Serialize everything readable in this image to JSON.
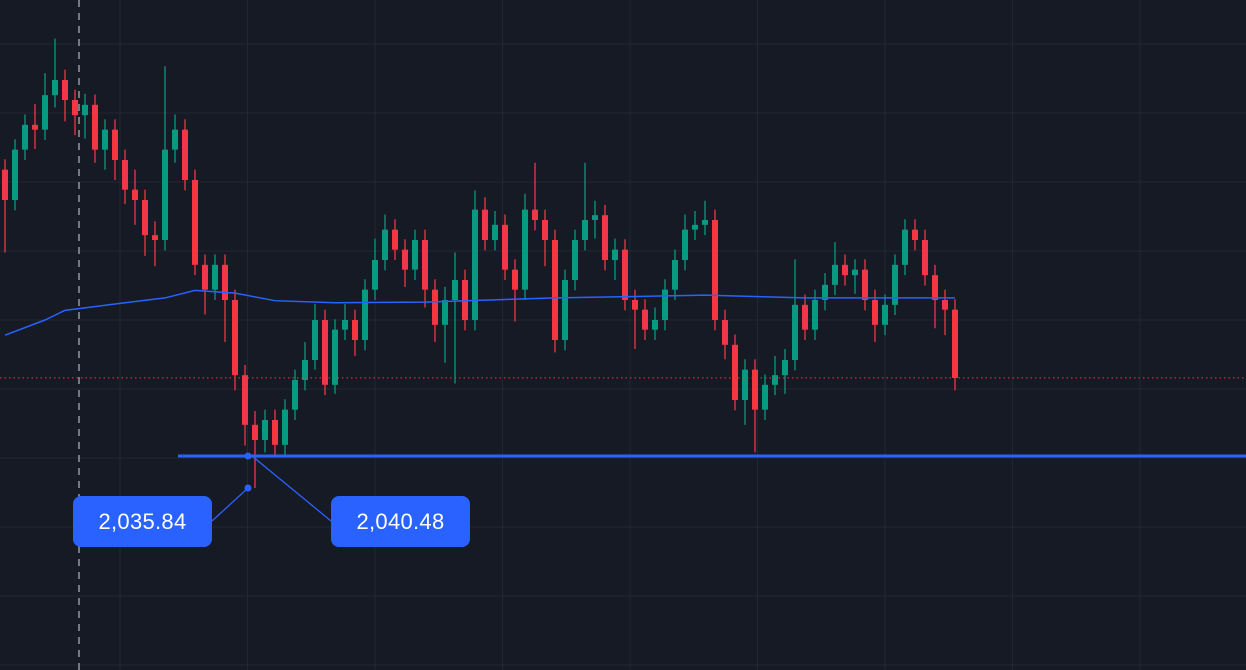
{
  "chart_data": {
    "type": "candlestick",
    "grid": true,
    "colors": {
      "background": "#161a25",
      "grid": "#232734",
      "up": "#089981",
      "down": "#f23645",
      "moving_average": "#2962ff",
      "horizontal_line": "#2962ff",
      "last_price_line": "#f23645",
      "crosshair": "#9598a1",
      "label_bg": "#2962ff"
    },
    "candles": [
      [
        2082.0,
        2083.5,
        2070.0,
        2077.6
      ],
      [
        2077.6,
        2086.4,
        2076.1,
        2084.9
      ],
      [
        2084.9,
        2090.0,
        2083.4,
        2088.5
      ],
      [
        2088.5,
        2091.5,
        2085.0,
        2087.8
      ],
      [
        2087.8,
        2096.0,
        2086.3,
        2092.8
      ],
      [
        2092.8,
        2101.0,
        2091.0,
        2095.0
      ],
      [
        2095.0,
        2096.5,
        2089.0,
        2092.1
      ],
      [
        2092.1,
        2093.6,
        2087.0,
        2089.9
      ],
      [
        2089.9,
        2093.0,
        2086.5,
        2091.4
      ],
      [
        2091.4,
        2092.9,
        2083.0,
        2084.9
      ],
      [
        2084.9,
        2089.3,
        2082.0,
        2087.8
      ],
      [
        2087.8,
        2089.3,
        2080.5,
        2083.4
      ],
      [
        2083.4,
        2084.9,
        2077.0,
        2079.1
      ],
      [
        2079.1,
        2082.0,
        2074.0,
        2077.6
      ],
      [
        2077.6,
        2079.1,
        2069.5,
        2072.5
      ],
      [
        2072.5,
        2074.5,
        2068.0,
        2071.8
      ],
      [
        2071.8,
        2097.0,
        2070.3,
        2084.9
      ],
      [
        2084.9,
        2090.0,
        2083.0,
        2087.8
      ],
      [
        2087.8,
        2089.3,
        2079.0,
        2080.5
      ],
      [
        2080.5,
        2082.0,
        2066.7,
        2068.2
      ],
      [
        2068.2,
        2069.7,
        2061.0,
        2064.6
      ],
      [
        2064.6,
        2069.7,
        2063.1,
        2068.2
      ],
      [
        2068.2,
        2069.7,
        2057.0,
        2063.1
      ],
      [
        2063.1,
        2064.6,
        2050.0,
        2052.2
      ],
      [
        2052.2,
        2053.7,
        2042.0,
        2045.0
      ],
      [
        2045.0,
        2047.0,
        2035.84,
        2042.8
      ],
      [
        2042.8,
        2047.2,
        2041.0,
        2045.7
      ],
      [
        2045.7,
        2047.2,
        2040.5,
        2042.1
      ],
      [
        2042.1,
        2048.7,
        2040.6,
        2047.2
      ],
      [
        2047.2,
        2053.0,
        2045.7,
        2051.5
      ],
      [
        2051.5,
        2057.0,
        2050.0,
        2054.4
      ],
      [
        2054.4,
        2062.5,
        2053.0,
        2060.2
      ],
      [
        2060.2,
        2061.7,
        2049.3,
        2050.8
      ],
      [
        2050.8,
        2060.3,
        2049.5,
        2058.8
      ],
      [
        2058.8,
        2062.5,
        2057.3,
        2060.2
      ],
      [
        2060.2,
        2061.7,
        2055.0,
        2057.3
      ],
      [
        2057.3,
        2066.1,
        2055.8,
        2064.6
      ],
      [
        2064.6,
        2072.0,
        2063.1,
        2068.9
      ],
      [
        2068.9,
        2075.5,
        2067.4,
        2073.3
      ],
      [
        2073.3,
        2074.8,
        2068.9,
        2070.4
      ],
      [
        2070.4,
        2071.9,
        2065.0,
        2067.5
      ],
      [
        2067.5,
        2073.3,
        2066.0,
        2071.8
      ],
      [
        2071.8,
        2073.3,
        2062.0,
        2064.6
      ],
      [
        2064.6,
        2066.1,
        2057.0,
        2059.5
      ],
      [
        2059.5,
        2065.0,
        2054.0,
        2063.1
      ],
      [
        2063.1,
        2070.0,
        2051.0,
        2066.0
      ],
      [
        2066.0,
        2067.5,
        2058.7,
        2060.2
      ],
      [
        2060.2,
        2079.0,
        2058.7,
        2076.2
      ],
      [
        2076.2,
        2078.0,
        2070.3,
        2071.8
      ],
      [
        2071.8,
        2076.0,
        2070.3,
        2074.0
      ],
      [
        2074.0,
        2075.5,
        2066.0,
        2067.5
      ],
      [
        2067.5,
        2069.0,
        2060.0,
        2064.6
      ],
      [
        2064.6,
        2078.5,
        2063.1,
        2076.2
      ],
      [
        2076.2,
        2083.0,
        2073.2,
        2074.7
      ],
      [
        2074.7,
        2076.2,
        2068.0,
        2071.8
      ],
      [
        2071.8,
        2073.3,
        2055.5,
        2057.3
      ],
      [
        2057.3,
        2067.5,
        2055.8,
        2066.0
      ],
      [
        2066.0,
        2073.3,
        2064.5,
        2071.8
      ],
      [
        2071.8,
        2083.0,
        2070.3,
        2074.7
      ],
      [
        2074.7,
        2077.5,
        2072.0,
        2075.4
      ],
      [
        2075.4,
        2076.9,
        2067.4,
        2068.9
      ],
      [
        2068.9,
        2072.0,
        2066.0,
        2070.4
      ],
      [
        2070.4,
        2071.9,
        2061.6,
        2063.1
      ],
      [
        2063.1,
        2064.6,
        2056.0,
        2061.7
      ],
      [
        2061.7,
        2063.2,
        2057.3,
        2058.8
      ],
      [
        2058.8,
        2062.0,
        2057.3,
        2060.2
      ],
      [
        2060.2,
        2066.1,
        2058.7,
        2064.6
      ],
      [
        2064.6,
        2070.4,
        2063.1,
        2068.9
      ],
      [
        2068.9,
        2075.5,
        2067.4,
        2073.3
      ],
      [
        2073.3,
        2076.0,
        2071.8,
        2074.0
      ],
      [
        2074.0,
        2077.5,
        2072.5,
        2074.7
      ],
      [
        2074.7,
        2076.2,
        2058.7,
        2060.2
      ],
      [
        2060.2,
        2061.7,
        2054.5,
        2056.6
      ],
      [
        2056.6,
        2058.1,
        2047.1,
        2048.6
      ],
      [
        2048.6,
        2054.5,
        2045.0,
        2053.0
      ],
      [
        2053.0,
        2054.5,
        2041.0,
        2047.2
      ],
      [
        2047.2,
        2052.3,
        2045.7,
        2050.8
      ],
      [
        2050.8,
        2055.0,
        2049.3,
        2052.2
      ],
      [
        2052.2,
        2056.0,
        2049.5,
        2054.4
      ],
      [
        2054.4,
        2069.0,
        2052.9,
        2062.4
      ],
      [
        2062.4,
        2063.9,
        2057.3,
        2058.8
      ],
      [
        2058.8,
        2064.6,
        2057.3,
        2063.1
      ],
      [
        2063.1,
        2067.0,
        2061.6,
        2065.3
      ],
      [
        2065.3,
        2071.5,
        2063.8,
        2068.2
      ],
      [
        2068.2,
        2069.7,
        2065.2,
        2066.7
      ],
      [
        2066.7,
        2069.0,
        2064.0,
        2067.5
      ],
      [
        2067.5,
        2069.0,
        2061.6,
        2063.1
      ],
      [
        2063.1,
        2064.6,
        2057.0,
        2059.5
      ],
      [
        2059.5,
        2063.9,
        2058.0,
        2062.4
      ],
      [
        2062.4,
        2069.7,
        2060.9,
        2068.2
      ],
      [
        2068.2,
        2074.8,
        2066.7,
        2073.3
      ],
      [
        2073.3,
        2074.8,
        2070.3,
        2071.8
      ],
      [
        2071.8,
        2073.3,
        2065.2,
        2066.7
      ],
      [
        2066.7,
        2068.2,
        2059.0,
        2063.1
      ],
      [
        2063.1,
        2064.6,
        2058.0,
        2061.7
      ],
      [
        2061.7,
        2063.2,
        2050.0,
        2051.8
      ]
    ],
    "moving_average": [
      [
        0,
        2058.0
      ],
      [
        4,
        2060.2
      ],
      [
        6,
        2061.6
      ],
      [
        12,
        2062.7
      ],
      [
        16,
        2063.4
      ],
      [
        19,
        2064.5
      ],
      [
        23,
        2064.1
      ],
      [
        27,
        2063.0
      ],
      [
        33,
        2062.7
      ],
      [
        42,
        2062.8
      ],
      [
        55,
        2063.4
      ],
      [
        70,
        2063.8
      ],
      [
        80,
        2063.4
      ],
      [
        95,
        2063.4
      ]
    ],
    "horizontal_line": {
      "price": 2040.48,
      "from_index": 17.3
    },
    "last_price": 2051.8,
    "vertical_marker_index": 7.4,
    "measurement": {
      "anchor_index": 24.3,
      "low_label": "2,035.84",
      "line_label": "2,040.48",
      "low_price": 2035.84,
      "line_price": 2040.48
    }
  }
}
